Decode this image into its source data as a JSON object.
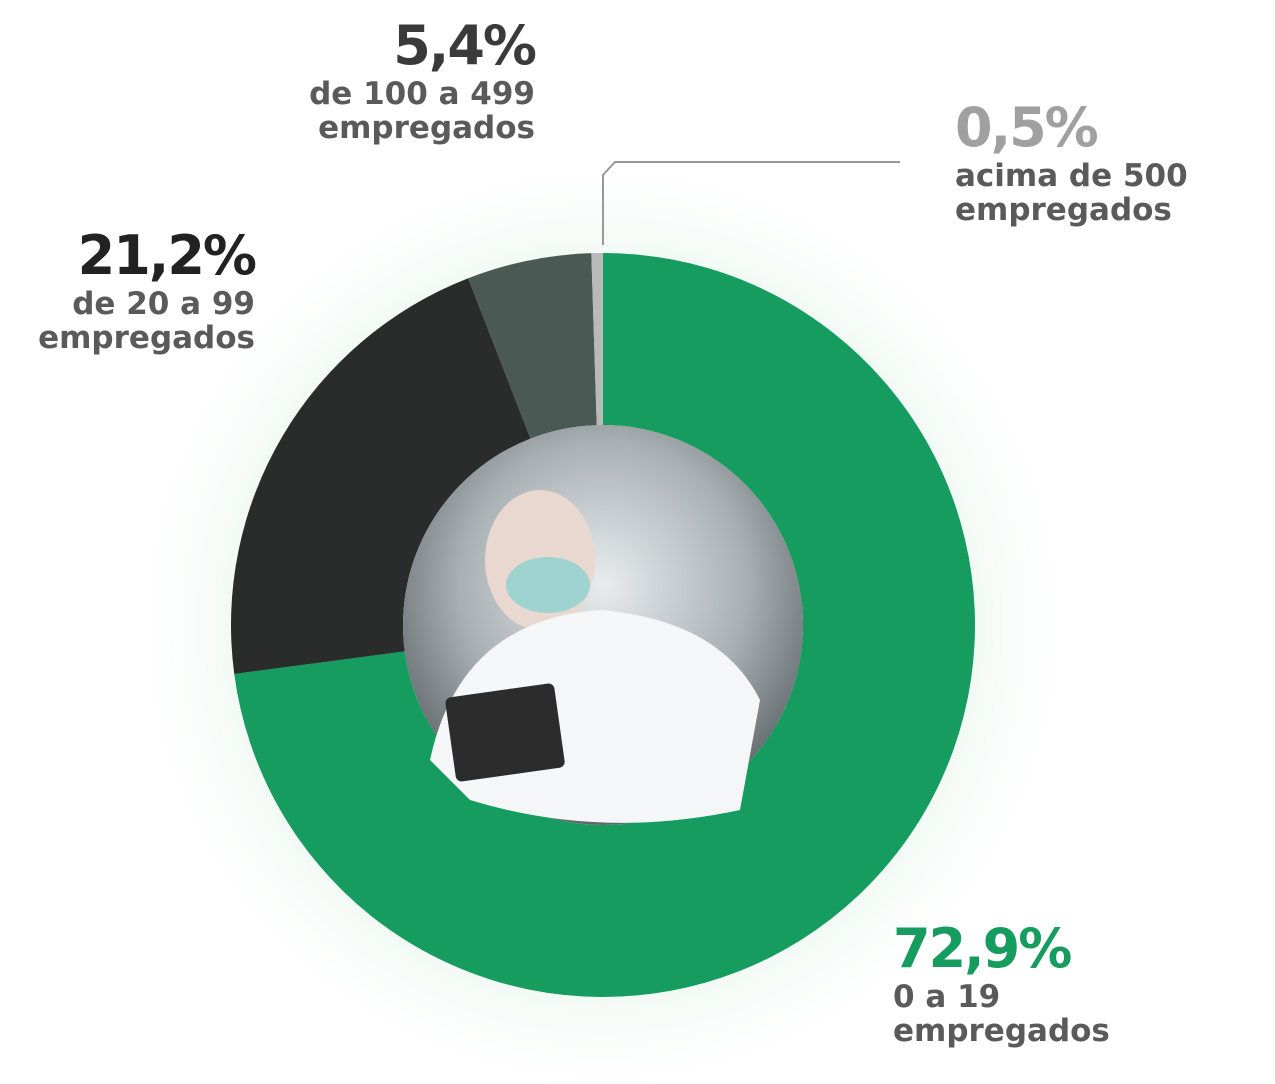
{
  "chart_data": {
    "type": "pie",
    "donut": true,
    "categories": [
      "0 a 19 empregados",
      "de 20 a 99 empregados",
      "de 100 a 499 empregados",
      "acima de 500 empregados"
    ],
    "values": [
      72.9,
      21.2,
      5.4,
      0.5
    ],
    "value_labels": [
      "72,9%",
      "21,2%",
      "5,4%",
      "0,5%"
    ],
    "colors": [
      "#169c5f",
      "#2a2b2b",
      "#4b5954",
      "#b8b9b9"
    ]
  }
}
